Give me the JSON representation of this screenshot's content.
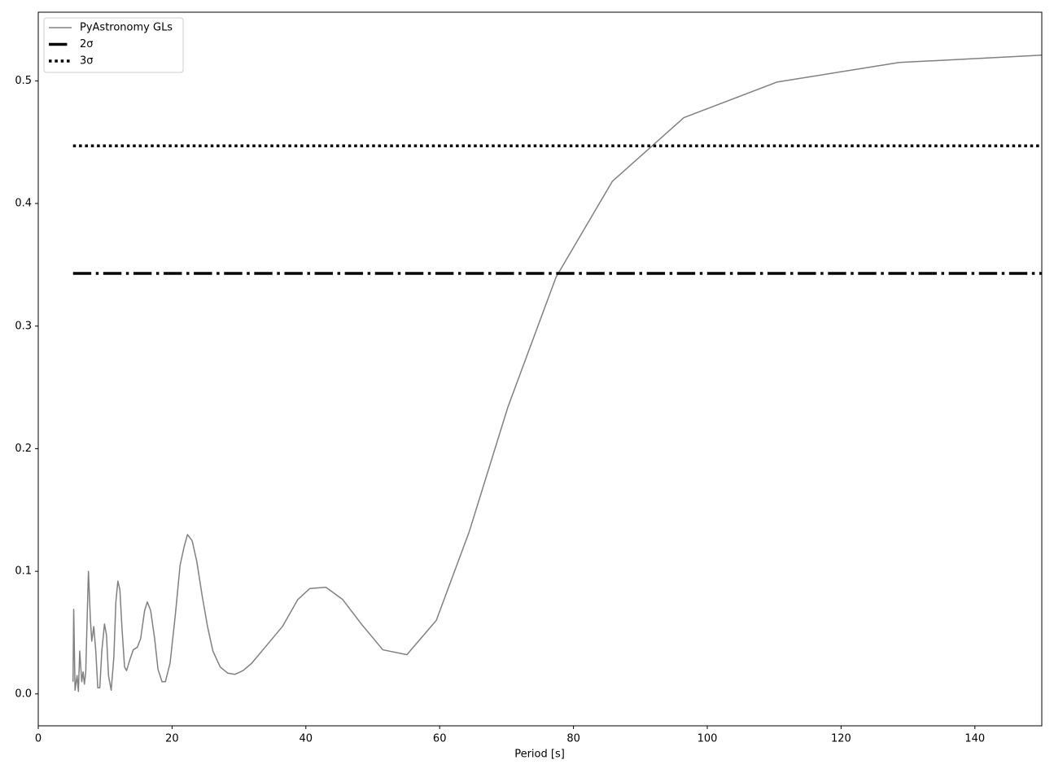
{
  "chart_data": {
    "type": "line",
    "xlabel": "Period [s]",
    "xlim": [
      0,
      150
    ],
    "ylim": [
      -0.026,
      0.556
    ],
    "xticks": [
      0,
      20,
      40,
      60,
      80,
      100,
      120,
      140
    ],
    "yticks": [
      {
        "value": 0,
        "label": "0.0"
      },
      0.1,
      0.2,
      0.3,
      0.4,
      0.5
    ],
    "legend": "upper left",
    "series": [
      {
        "name": "PyAstronomy GLs",
        "color": "#808080",
        "linestyle": "solid",
        "linewidth": 1.5,
        "x": [
          5.2,
          5.3,
          5.5,
          5.8,
          6.0,
          6.2,
          6.5,
          6.7,
          6.9,
          7.1,
          7.3,
          7.5,
          7.8,
          8.0,
          8.3,
          8.6,
          8.9,
          9.2,
          9.5,
          9.9,
          10.2,
          10.5,
          10.9,
          11.3,
          11.6,
          11.9,
          12.2,
          12.5,
          12.9,
          13.2,
          13.7,
          14.2,
          14.8,
          15.3,
          15.9,
          16.3,
          16.8,
          17.4,
          17.9,
          18.5,
          19.0,
          19.7,
          20.5,
          21.2,
          21.8,
          22.3,
          23.0,
          23.7,
          24.5,
          25.3,
          26.1,
          27.2,
          28.3,
          29.4,
          30.6,
          31.9,
          34.2,
          36.5,
          38.8,
          40.6,
          43.0,
          45.5,
          48.3,
          51.5,
          55.1,
          59.5,
          64.4,
          70.2,
          77.4,
          85.8,
          96.5,
          110.4,
          128.7,
          150
        ],
        "values": [
          0.01,
          0.069,
          0.003,
          0.015,
          0.002,
          0.035,
          0.01,
          0.018,
          0.008,
          0.018,
          0.06,
          0.1,
          0.06,
          0.043,
          0.055,
          0.035,
          0.005,
          0.005,
          0.035,
          0.057,
          0.048,
          0.015,
          0.003,
          0.03,
          0.075,
          0.092,
          0.085,
          0.055,
          0.022,
          0.019,
          0.028,
          0.036,
          0.038,
          0.045,
          0.068,
          0.075,
          0.068,
          0.045,
          0.02,
          0.01,
          0.01,
          0.025,
          0.065,
          0.105,
          0.12,
          0.13,
          0.125,
          0.108,
          0.08,
          0.055,
          0.035,
          0.022,
          0.017,
          0.016,
          0.019,
          0.025,
          0.04,
          0.055,
          0.077,
          0.086,
          0.087,
          0.077,
          0.057,
          0.036,
          0.032,
          0.06,
          0.132,
          0.234,
          0.34,
          0.418,
          0.47,
          0.499,
          0.515,
          0.521
        ]
      },
      {
        "name": "2σ",
        "color": "#000000",
        "linestyle": "dashdot",
        "linewidth": 3.5,
        "x": [
          5.2,
          150
        ],
        "values": [
          0.343,
          0.343
        ]
      },
      {
        "name": "3σ",
        "color": "#000000",
        "linestyle": "dotted",
        "linewidth": 3.5,
        "x": [
          5.2,
          150
        ],
        "values": [
          0.447,
          0.447
        ]
      }
    ]
  }
}
